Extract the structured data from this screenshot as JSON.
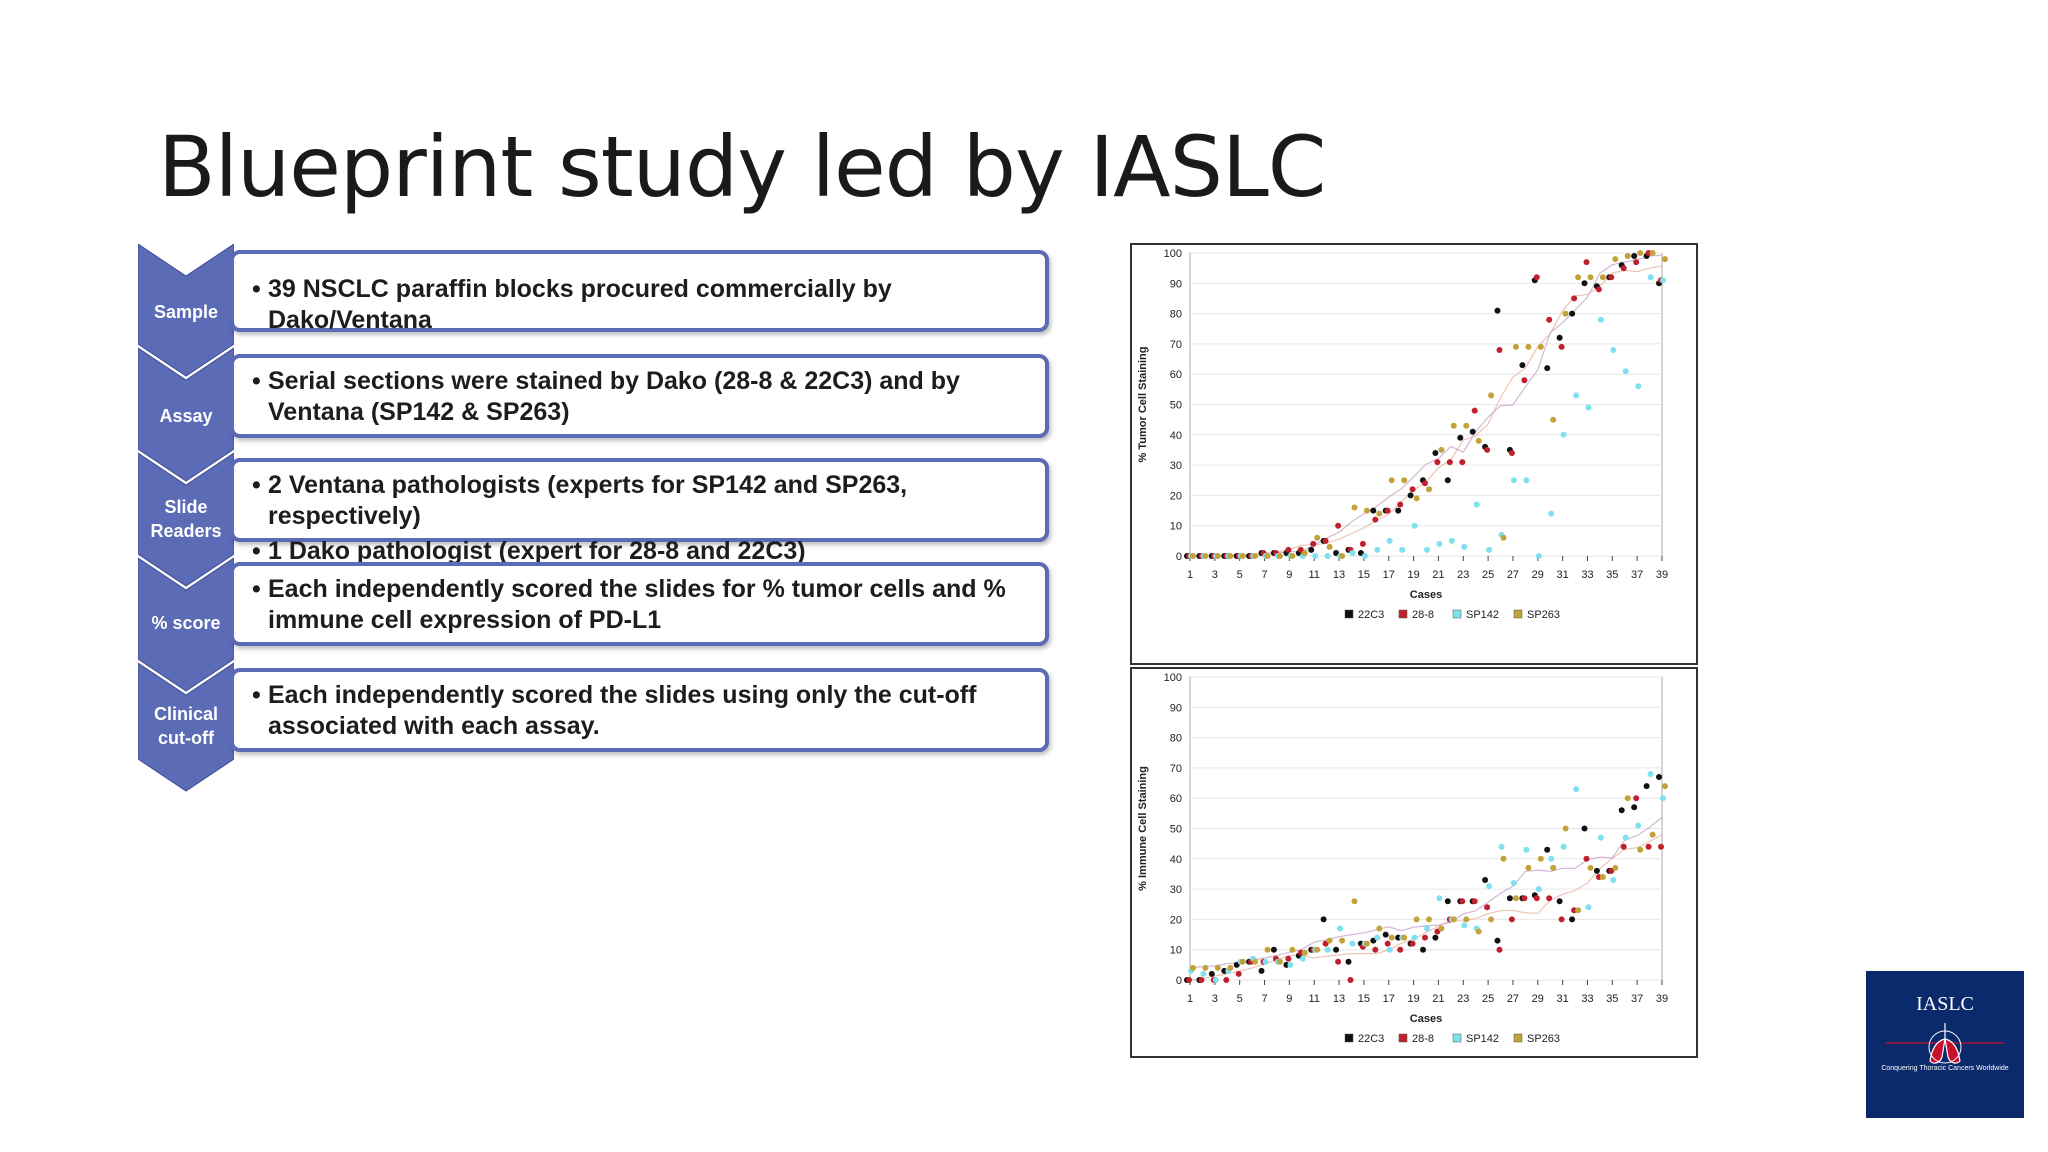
{
  "slide": {
    "title": "Blueprint study led by IASLC"
  },
  "colors": {
    "accent": "#5b6bb5",
    "chevron": "#5b6bb5",
    "c22C3": "#111111",
    "c288": "#c0202e",
    "cSP142": "#7fe0f0",
    "cSP263": "#c4a23a"
  },
  "flow": [
    {
      "label": [
        "Sample"
      ],
      "lines": [
        "39 NSCLC paraffin blocks procured commercially by Dako/Ventana"
      ]
    },
    {
      "label": [
        "Assay"
      ],
      "lines": [
        "Serial sections were stained by Dako (28-8 & 22C3) and by Ventana (SP142 & SP263)"
      ]
    },
    {
      "label": [
        "Slide",
        "Readers"
      ],
      "lines": [
        "2 Ventana pathologists (experts for SP142 and SP263, respectively)",
        "1 Dako pathologist (expert for 28-8 and 22C3)"
      ]
    },
    {
      "label": [
        "% score"
      ],
      "lines": [
        "Each independently scored the slides for % tumor cells and % immune cell expression of PD-L1"
      ]
    },
    {
      "label": [
        "Clinical",
        "cut-off"
      ],
      "lines": [
        "Each independently scored the slides using only the cut-off associated with each assay."
      ]
    }
  ],
  "chart_data": [
    {
      "type": "scatter",
      "title": "",
      "xlabel": "Cases",
      "ylabel": "% Tumor Cell Staining",
      "xlim": [
        1,
        39
      ],
      "ylim": [
        0,
        100
      ],
      "xticks": [
        "1",
        "3",
        "5",
        "7",
        "9",
        "11",
        "13",
        "15",
        "17",
        "19",
        "21",
        "23",
        "25",
        "27",
        "29",
        "31",
        "33",
        "35",
        "37",
        "39"
      ],
      "yticks": [
        "0",
        "10",
        "20",
        "30",
        "40",
        "50",
        "60",
        "70",
        "80",
        "90",
        "100"
      ],
      "legend": [
        "22C3",
        "28-8",
        "SP142",
        "SP263"
      ],
      "legend_position": "bottom",
      "x": [
        1,
        2,
        3,
        4,
        5,
        6,
        7,
        8,
        9,
        10,
        11,
        12,
        13,
        14,
        15,
        16,
        17,
        18,
        19,
        20,
        21,
        22,
        23,
        24,
        25,
        26,
        27,
        28,
        29,
        30,
        31,
        32,
        33,
        34,
        35,
        36,
        37,
        38,
        39
      ],
      "series": [
        {
          "name": "22C3",
          "values": [
            0,
            0,
            0,
            0,
            0,
            0,
            1,
            1,
            1,
            1,
            2,
            5,
            1,
            2,
            1,
            15,
            15,
            15,
            20,
            25,
            34,
            25,
            39,
            41,
            36,
            81,
            35,
            63,
            91,
            62,
            72,
            80,
            90,
            89,
            92,
            96,
            99,
            99,
            90
          ]
        },
        {
          "name": "28-8",
          "values": [
            0,
            0,
            0,
            0,
            0,
            0,
            1,
            1,
            2,
            2,
            4,
            5,
            10,
            2,
            4,
            12,
            15,
            17,
            22,
            24,
            31,
            31,
            31,
            48,
            35,
            68,
            34,
            58,
            92,
            78,
            69,
            85,
            97,
            88,
            92,
            95,
            97,
            100,
            91
          ]
        },
        {
          "name": "SP142",
          "values": [
            0,
            0,
            0,
            0,
            0,
            0,
            0,
            0,
            0,
            0,
            0,
            0,
            0,
            1,
            0,
            2,
            5,
            2,
            10,
            2,
            4,
            5,
            3,
            17,
            2,
            7,
            25,
            25,
            0,
            14,
            40,
            53,
            49,
            78,
            68,
            61,
            56,
            92,
            91
          ]
        },
        {
          "name": "SP263",
          "values": [
            0,
            0,
            0,
            0,
            0,
            0,
            0,
            0,
            0,
            1,
            6,
            3,
            0,
            16,
            15,
            14,
            25,
            25,
            19,
            22,
            35,
            43,
            43,
            38,
            53,
            6,
            69,
            69,
            69,
            45,
            80,
            92,
            92,
            92,
            98,
            99,
            100,
            100,
            98
          ]
        }
      ]
    },
    {
      "type": "scatter",
      "title": "",
      "xlabel": "Cases",
      "ylabel": "% Immune Cell Staining",
      "xlim": [
        1,
        39
      ],
      "ylim": [
        0,
        100
      ],
      "xticks": [
        "1",
        "3",
        "5",
        "7",
        "9",
        "11",
        "13",
        "15",
        "17",
        "19",
        "21",
        "23",
        "25",
        "27",
        "29",
        "31",
        "33",
        "35",
        "37",
        "39"
      ],
      "yticks": [
        "0",
        "10",
        "20",
        "30",
        "40",
        "50",
        "60",
        "70",
        "80",
        "90",
        "100"
      ],
      "legend": [
        "22C3",
        "28-8",
        "SP142",
        "SP263"
      ],
      "legend_position": "bottom",
      "x": [
        1,
        2,
        3,
        4,
        5,
        6,
        7,
        8,
        9,
        10,
        11,
        12,
        13,
        14,
        15,
        16,
        17,
        18,
        19,
        20,
        21,
        22,
        23,
        24,
        25,
        26,
        27,
        28,
        29,
        30,
        31,
        32,
        33,
        34,
        35,
        36,
        37,
        38,
        39
      ],
      "series": [
        {
          "name": "22C3",
          "values": [
            0,
            0,
            2,
            3,
            5,
            6,
            3,
            10,
            5,
            8,
            10,
            20,
            10,
            6,
            12,
            13,
            15,
            14,
            12,
            10,
            14,
            26,
            26,
            26,
            33,
            13,
            27,
            27,
            28,
            43,
            26,
            20,
            50,
            36,
            36,
            56,
            57,
            64,
            67
          ]
        },
        {
          "name": "28-8",
          "values": [
            0,
            0,
            0,
            0,
            2,
            6,
            6,
            7,
            7,
            9,
            10,
            12,
            6,
            0,
            11,
            10,
            12,
            10,
            12,
            14,
            16,
            20,
            26,
            26,
            24,
            10,
            20,
            27,
            27,
            27,
            20,
            23,
            40,
            34,
            36,
            44,
            60,
            44,
            44
          ]
        },
        {
          "name": "SP142",
          "values": [
            3,
            2,
            0,
            3,
            6,
            7,
            6,
            6,
            5,
            7,
            10,
            10,
            17,
            12,
            12,
            14,
            10,
            14,
            14,
            17,
            27,
            20,
            18,
            17,
            31,
            44,
            32,
            43,
            30,
            40,
            44,
            63,
            24,
            47,
            33,
            47,
            51,
            68,
            60
          ]
        },
        {
          "name": "SP263",
          "values": [
            4,
            4,
            4,
            4,
            6,
            6,
            10,
            6,
            10,
            9,
            10,
            13,
            13,
            26,
            12,
            17,
            14,
            14,
            20,
            20,
            17,
            20,
            20,
            16,
            20,
            40,
            27,
            37,
            40,
            37,
            50,
            23,
            37,
            34,
            37,
            60,
            43,
            48,
            64
          ]
        }
      ]
    }
  ]
}
